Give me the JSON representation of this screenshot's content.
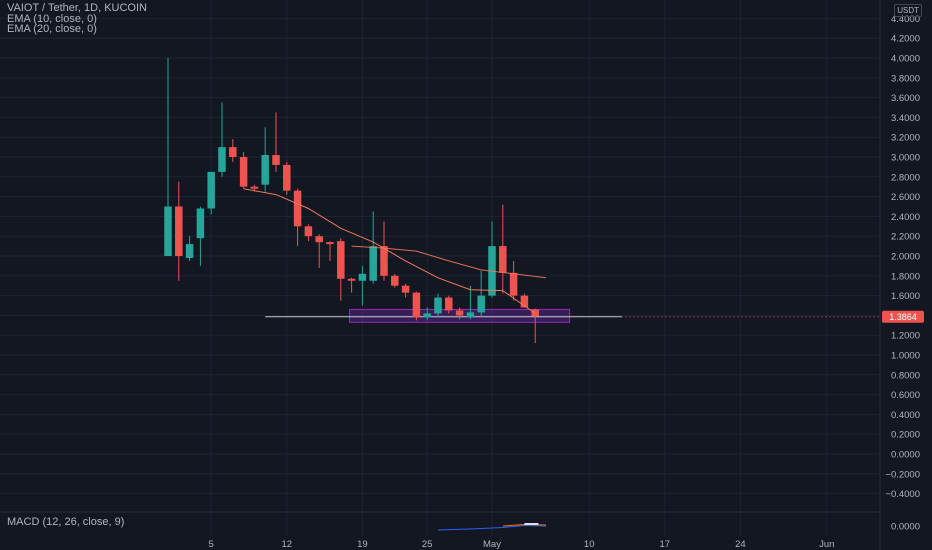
{
  "header": {
    "symbol_line": "VAIOT / Tether, 1D, KUCOIN",
    "indicator_1": "EMA (10, close, 0)",
    "indicator_2": "EMA (20, close, 0)",
    "currency": "USDT"
  },
  "macd": {
    "label": "MACD (12, 26, close, 9)",
    "axis_tick": "0.0000"
  },
  "colors": {
    "background": "#131722",
    "grid": "#1f2430",
    "up": "#26a69a",
    "down": "#ef5350",
    "ema_line": "#f07a5a",
    "zone_fill": "rgba(123,44,191,0.35)",
    "zone_border": "#9c27b0",
    "price_badge": "#ef5350",
    "axis_text": "#b2b5be"
  },
  "chart_data": {
    "type": "candlestick",
    "ylim": [
      -0.5,
      4.5
    ],
    "yticks": [
      "4.4000",
      "4.2000",
      "4.0000",
      "3.8000",
      "3.6000",
      "3.4000",
      "3.2000",
      "3.0000",
      "2.8000",
      "2.6000",
      "2.4000",
      "2.2000",
      "2.0000",
      "1.8000",
      "1.6000",
      "1.4000",
      "1.2000",
      "1.0000",
      "0.8000",
      "0.6000",
      "0.4000",
      "0.2000",
      "0.0000",
      "−0.2000",
      "−0.4000"
    ],
    "ytick_values": [
      4.4,
      4.2,
      4.0,
      3.8,
      3.6,
      3.4,
      3.2,
      3.0,
      2.8,
      2.6,
      2.4,
      2.2,
      2.0,
      1.8,
      1.6,
      1.4,
      1.2,
      1.0,
      0.8,
      0.6,
      0.4,
      0.2,
      0.0,
      -0.2,
      -0.4
    ],
    "x_start": "Apr 1",
    "xticks": [
      {
        "label": "5",
        "index": 4
      },
      {
        "label": "12",
        "index": 11
      },
      {
        "label": "19",
        "index": 18
      },
      {
        "label": "25",
        "index": 24
      },
      {
        "label": "May",
        "index": 30
      },
      {
        "label": "10",
        "index": 39
      },
      {
        "label": "17",
        "index": 46
      },
      {
        "label": "24",
        "index": 53
      },
      {
        "label": "Jun",
        "index": 61
      }
    ],
    "candles": [
      {
        "i": 0,
        "o": 2.0,
        "h": 4.0,
        "l": 2.0,
        "c": 2.5
      },
      {
        "i": 1,
        "o": 2.5,
        "h": 2.75,
        "l": 1.75,
        "c": 2.0
      },
      {
        "i": 2,
        "o": 1.98,
        "h": 2.2,
        "l": 1.95,
        "c": 2.12
      },
      {
        "i": 3,
        "o": 2.18,
        "h": 2.5,
        "l": 1.9,
        "c": 2.48
      },
      {
        "i": 4,
        "o": 2.48,
        "h": 2.85,
        "l": 2.42,
        "c": 2.85
      },
      {
        "i": 5,
        "o": 2.85,
        "h": 3.55,
        "l": 2.8,
        "c": 3.1
      },
      {
        "i": 6,
        "o": 3.1,
        "h": 3.18,
        "l": 2.95,
        "c": 3.0
      },
      {
        "i": 7,
        "o": 3.0,
        "h": 3.05,
        "l": 2.68,
        "c": 2.7
      },
      {
        "i": 8,
        "o": 2.7,
        "h": 2.72,
        "l": 2.65,
        "c": 2.68
      },
      {
        "i": 9,
        "o": 2.72,
        "h": 3.3,
        "l": 2.65,
        "c": 3.02
      },
      {
        "i": 10,
        "o": 3.02,
        "h": 3.45,
        "l": 2.85,
        "c": 2.92
      },
      {
        "i": 11,
        "o": 2.92,
        "h": 2.95,
        "l": 2.62,
        "c": 2.66
      },
      {
        "i": 12,
        "o": 2.66,
        "h": 2.68,
        "l": 2.1,
        "c": 2.3
      },
      {
        "i": 13,
        "o": 2.3,
        "h": 2.32,
        "l": 2.15,
        "c": 2.2
      },
      {
        "i": 14,
        "o": 2.2,
        "h": 2.22,
        "l": 1.88,
        "c": 2.14
      },
      {
        "i": 15,
        "o": 2.14,
        "h": 2.15,
        "l": 1.95,
        "c": 2.12
      },
      {
        "i": 16,
        "o": 2.15,
        "h": 2.18,
        "l": 1.55,
        "c": 1.77
      },
      {
        "i": 17,
        "o": 1.77,
        "h": 1.78,
        "l": 1.63,
        "c": 1.75
      },
      {
        "i": 18,
        "o": 1.75,
        "h": 1.9,
        "l": 1.5,
        "c": 1.82
      },
      {
        "i": 19,
        "o": 1.75,
        "h": 2.45,
        "l": 1.72,
        "c": 2.1
      },
      {
        "i": 20,
        "o": 2.1,
        "h": 2.35,
        "l": 1.75,
        "c": 1.8
      },
      {
        "i": 21,
        "o": 1.8,
        "h": 1.82,
        "l": 1.68,
        "c": 1.7
      },
      {
        "i": 22,
        "o": 1.7,
        "h": 1.72,
        "l": 1.58,
        "c": 1.63
      },
      {
        "i": 23,
        "o": 1.63,
        "h": 1.64,
        "l": 1.35,
        "c": 1.38
      },
      {
        "i": 24,
        "o": 1.38,
        "h": 1.48,
        "l": 1.35,
        "c": 1.42
      },
      {
        "i": 25,
        "o": 1.42,
        "h": 1.62,
        "l": 1.38,
        "c": 1.58
      },
      {
        "i": 26,
        "o": 1.58,
        "h": 1.6,
        "l": 1.42,
        "c": 1.45
      },
      {
        "i": 27,
        "o": 1.45,
        "h": 1.48,
        "l": 1.36,
        "c": 1.4
      },
      {
        "i": 28,
        "o": 1.38,
        "h": 1.7,
        "l": 1.36,
        "c": 1.43
      },
      {
        "i": 29,
        "o": 1.43,
        "h": 1.85,
        "l": 1.38,
        "c": 1.6
      },
      {
        "i": 30,
        "o": 1.6,
        "h": 2.35,
        "l": 1.58,
        "c": 2.1
      },
      {
        "i": 31,
        "o": 2.1,
        "h": 2.52,
        "l": 1.62,
        "c": 1.83
      },
      {
        "i": 32,
        "o": 1.83,
        "h": 1.95,
        "l": 1.55,
        "c": 1.6
      },
      {
        "i": 33,
        "o": 1.6,
        "h": 1.62,
        "l": 1.48,
        "c": 1.48
      },
      {
        "i": 34,
        "o": 1.46,
        "h": 1.47,
        "l": 1.12,
        "c": 1.39
      }
    ],
    "series": [
      {
        "name": "EMA (10, close, 0)",
        "x": [
          7,
          10,
          13,
          16,
          19,
          22,
          25,
          28,
          31,
          34
        ],
        "values": [
          2.68,
          2.62,
          2.48,
          2.28,
          2.14,
          1.95,
          1.78,
          1.66,
          1.65,
          1.42
        ]
      },
      {
        "name": "EMA (20, close, 0)",
        "x": [
          17,
          20,
          23,
          26,
          29,
          32,
          35
        ],
        "values": [
          2.1,
          2.08,
          2.05,
          1.95,
          1.86,
          1.82,
          1.78
        ]
      }
    ],
    "horizontal_line": {
      "value": 1.3864,
      "from_index": 9,
      "to_index": 42
    },
    "zone": {
      "from_index": 17,
      "to_index": 37,
      "top": 1.46,
      "bottom": 1.33
    },
    "last_price": "1.3864"
  }
}
